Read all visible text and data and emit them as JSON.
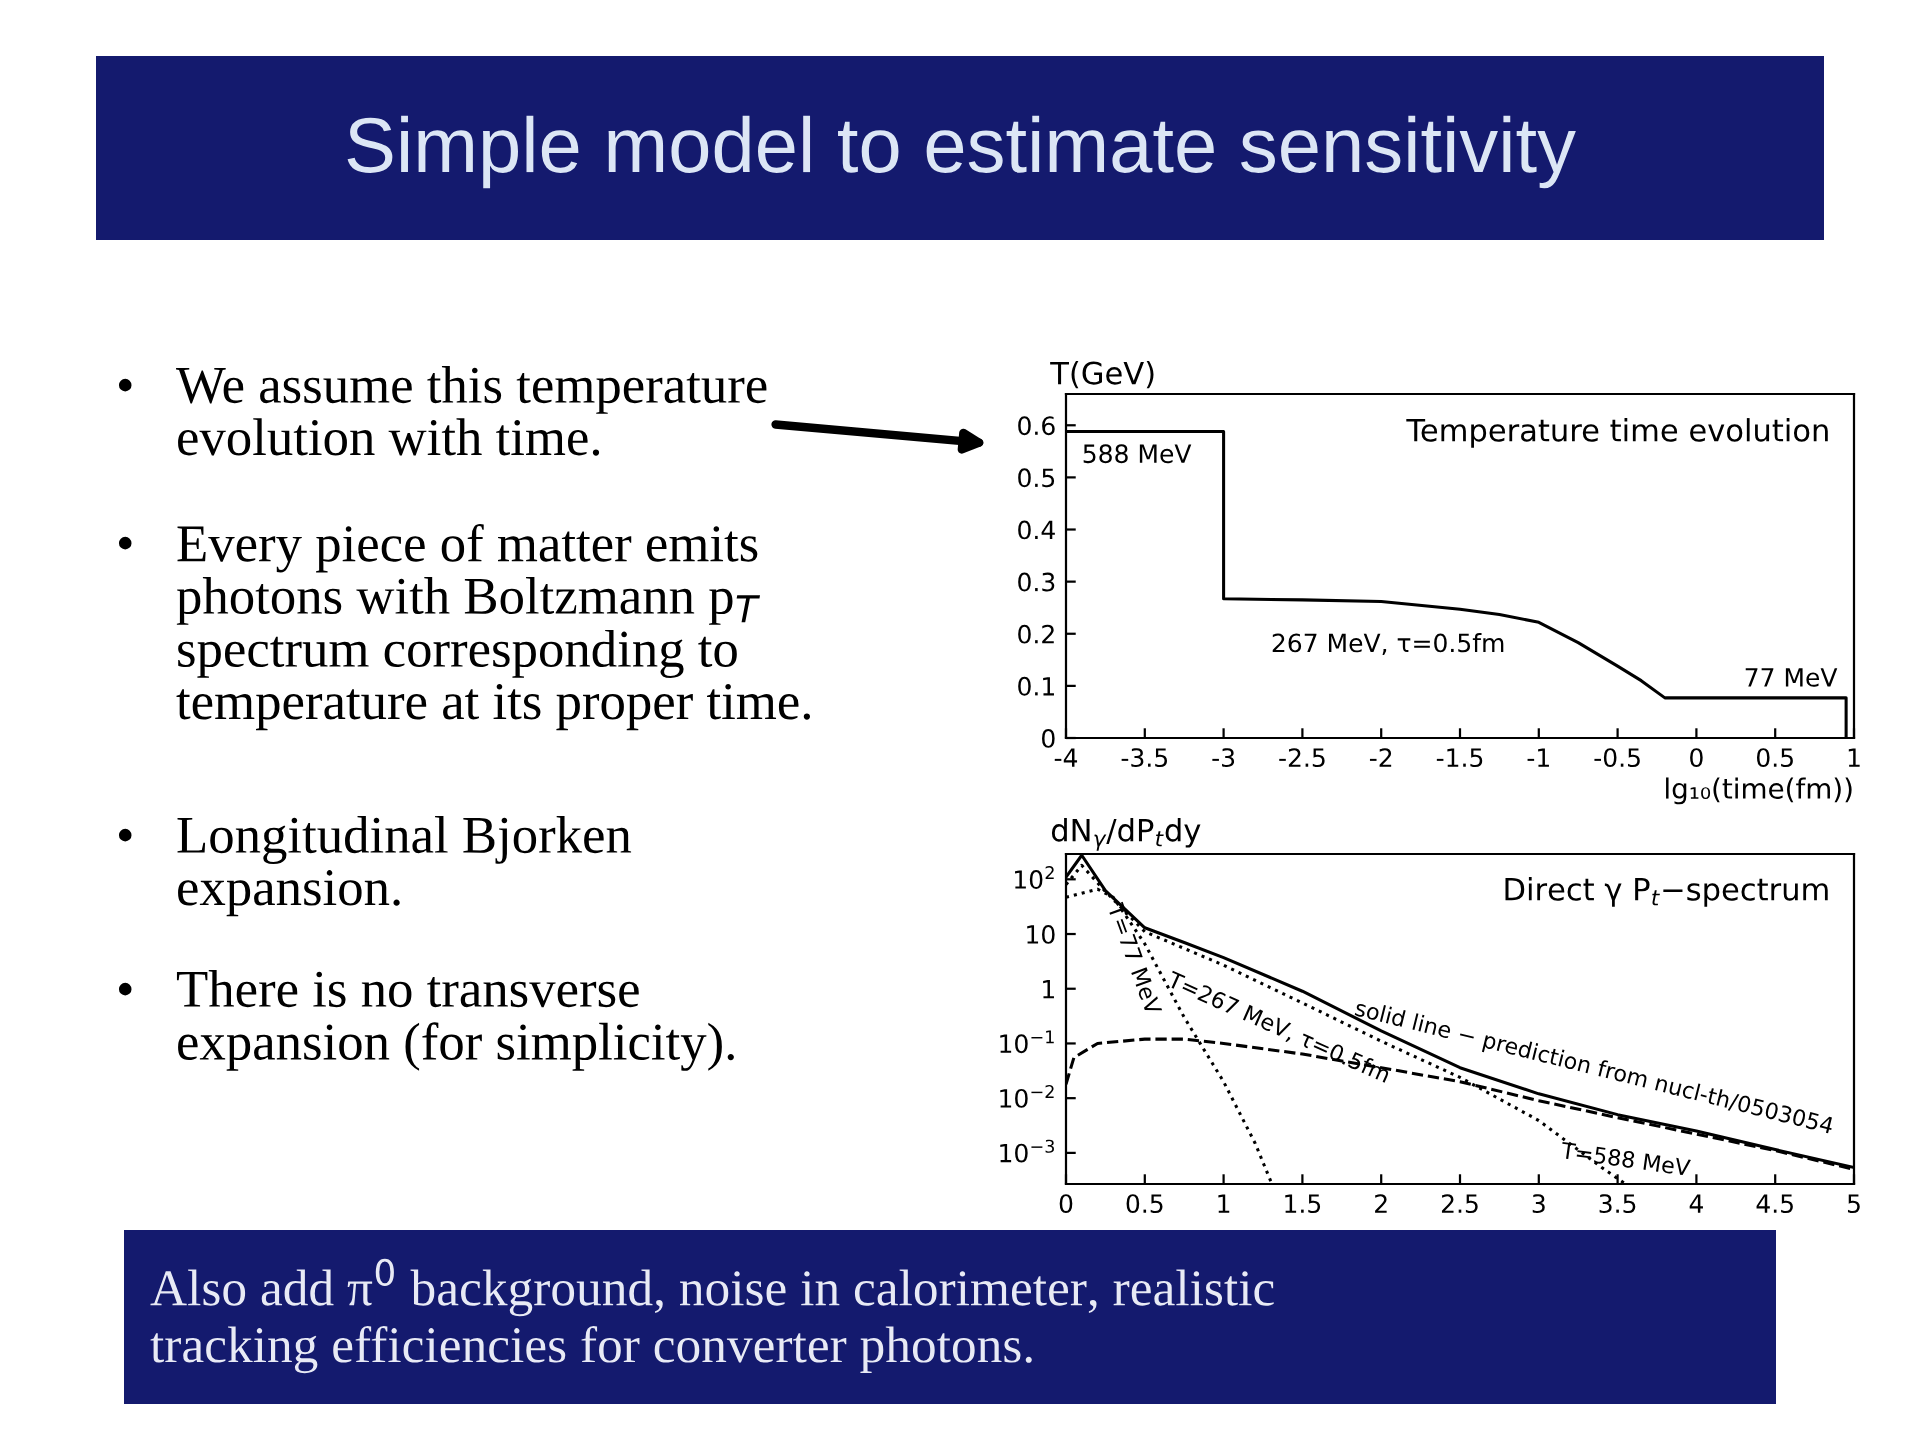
{
  "chart_data": [
    {
      "type": "line",
      "title": "Temperature time evolution",
      "xlabel": "lg₁₀(time(fm))",
      "ylabel": "T(GeV)",
      "xlim": [
        -4,
        1
      ],
      "ylim": [
        0,
        0.66
      ],
      "xticks": [
        -4,
        -3.5,
        -3,
        -2.5,
        -2,
        -1.5,
        -1,
        -0.5,
        0,
        0.5,
        1
      ],
      "yticks": [
        0,
        0.1,
        0.2,
        0.3,
        0.4,
        0.5,
        0.6
      ],
      "grid": false,
      "legend": false,
      "marker": "none",
      "series": [
        {
          "color": "#000000",
          "line_style": "solid",
          "x": [
            -4,
            -3,
            -3,
            -2.5,
            -2,
            -1.5,
            -1.25,
            -1,
            -0.75,
            -0.5,
            -0.35,
            -0.2,
            0.95,
            0.95
          ],
          "values": [
            0.588,
            0.588,
            0.267,
            0.265,
            0.262,
            0.247,
            0.237,
            0.222,
            0.183,
            0.138,
            0.11,
            0.077,
            0.077,
            0
          ]
        }
      ],
      "annotations": [
        "588 MeV",
        "267 MeV, τ=0.5fm",
        "77 MeV"
      ]
    },
    {
      "type": "line",
      "title": "Direct γ P$_{t}$−spectrum",
      "ylabel": "dN$_{γ}$/dP$_{t}$dy",
      "log": "y",
      "xlim": [
        0,
        5
      ],
      "ylim": [
        0.00027,
        290
      ],
      "xticks": [
        0,
        0.5,
        1,
        1.5,
        2,
        2.5,
        3,
        3.5,
        4,
        4.5,
        5
      ],
      "yticks": [
        {
          "value": 0.001,
          "label": "10$^{−3}$"
        },
        {
          "value": 0.01,
          "label": "10$^{−2}$"
        },
        {
          "value": 0.1,
          "label": "10$^{−1}$"
        },
        1,
        10,
        {
          "value": 100,
          "label": "10$^{2}$"
        }
      ],
      "grid": false,
      "legend": false,
      "marker": "none",
      "series": [
        {
          "color": "#000000",
          "line_style": "solid",
          "x": [
            0,
            0.1,
            0.25,
            0.5,
            0.75,
            1,
            1.5,
            2,
            2.5,
            3,
            3.5,
            4,
            4.5,
            5
          ],
          "values": [
            110,
            275,
            62,
            13,
            7,
            3.7,
            0.9,
            0.17,
            0.036,
            0.012,
            0.005,
            0.0025,
            0.00115,
            0.00054
          ]
        },
        {
          "color": "#000000",
          "line_style": "dotted",
          "x": [
            0,
            0.1,
            0.25,
            0.5,
            1,
            1.5,
            2,
            2.5,
            3,
            3.4,
            3.55
          ],
          "values": [
            80,
            180,
            60,
            11,
            2.7,
            0.55,
            0.11,
            0.024,
            0.0039,
            0.00054,
            0.00027
          ]
        },
        {
          "color": "#000000",
          "line_style": "dotted",
          "x": [
            0,
            0.2,
            0.3,
            0.5,
            0.75,
            1,
            1.2,
            1.3
          ],
          "values": [
            47,
            66,
            47,
            6.6,
            0.3,
            0.02,
            0.0015,
            0.0003
          ]
        },
        {
          "color": "#000000",
          "line_style": "dashed",
          "x": [
            0,
            0.05,
            0.2,
            0.5,
            0.75,
            1,
            1.5,
            2,
            2.5,
            3,
            3.5,
            4,
            4.5,
            5
          ],
          "values": [
            0.018,
            0.055,
            0.1,
            0.12,
            0.12,
            0.1,
            0.064,
            0.036,
            0.02,
            0.009,
            0.0044,
            0.0022,
            0.0011,
            0.0005
          ]
        }
      ],
      "annotations": [
        "T=77 MeV",
        "T=267 MeV, τ=0.5fm",
        "solid line − prediction from nucl-th/0503054",
        "T=588 MeV"
      ]
    },
    {
      "type": "other",
      "title": "Simple model to estimate sensitivity",
      "annotations": [
        "• We assume this temperature\nevolution with time.",
        "• Every piece of matter emits\nphotons with Boltzmann p$_{T}$\nspectrum corresponding to\ntemperature at its proper time.",
        "• Longitudinal Bjorken\nexpansion.",
        "• There is no transverse\nexpansion (for simplicity).",
        "Also add π$^{0}$ background, noise in calorimeter, realistic\ntracking efficiencies for converter photons."
      ]
    }
  ]
}
